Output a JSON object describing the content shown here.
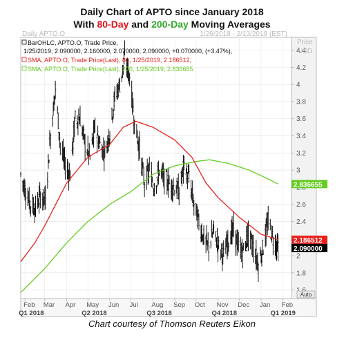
{
  "title": {
    "line1": "Daily Chart of APTO since January 2018",
    "line2_pre": "With ",
    "line2_red": "80-Day",
    "line2_mid": " and ",
    "line2_green": "200-Day",
    "line2_post": " Moving Averages"
  },
  "header": {
    "left": "Daily APTO.O",
    "range": "1/26/2018 - 2/13/2019 (EST)",
    "unit": "Price",
    "unit2": "USD"
  },
  "legend": {
    "bar_line1": "BarOHLC, APTO.O, Trade Price,",
    "bar_line2": "1/25/2019, 2.090000, 2.160000, 2.070000, 2.090000, +0.070000, (+3.47%),",
    "sma80": "SMA, APTO.O, Trade Price(Last),  80, 1/25/2019, 2.186512,",
    "sma200": "SMA, APTO.O, Trade Price(Last),  200, 1/25/2019, 2.836655"
  },
  "caption": "Chart courtesy of Thomson Reuters Eikon",
  "auto_label": "Auto",
  "colors": {
    "bars": "#111111",
    "sma80": "#e8211c",
    "sma200": "#66cc22",
    "axis_bg": "#f2f2f2",
    "grid": "#e3e3e3",
    "last_box": "#000000",
    "sma80_box": "#e8211c",
    "sma200_box": "#66cc22"
  },
  "chart_data": {
    "type": "line",
    "ylim": [
      1.5,
      4.55
    ],
    "xlim": [
      "2018-01-26",
      "2019-02-13"
    ],
    "y_ticks": [
      1.6,
      1.8,
      2,
      2.2,
      2.4,
      2.6,
      2.8,
      3,
      3.2,
      3.4,
      3.6,
      3.8,
      4,
      4.2,
      4.4
    ],
    "month_ticks": [
      {
        "label": "Feb",
        "date": "2018-02-01"
      },
      {
        "label": "Mar",
        "date": "2018-03-01"
      },
      {
        "label": "Apr",
        "date": "2018-04-01"
      },
      {
        "label": "May",
        "date": "2018-05-01"
      },
      {
        "label": "Jun",
        "date": "2018-06-01"
      },
      {
        "label": "Jul",
        "date": "2018-07-01"
      },
      {
        "label": "Aug",
        "date": "2018-08-01"
      },
      {
        "label": "Sep",
        "date": "2018-09-01"
      },
      {
        "label": "Oct",
        "date": "2018-10-01"
      },
      {
        "label": "Nov",
        "date": "2018-11-01"
      },
      {
        "label": "Dec",
        "date": "2018-12-01"
      },
      {
        "label": "Jan",
        "date": "2019-01-01"
      },
      {
        "label": "Feb",
        "date": "2019-02-01"
      }
    ],
    "quarter_labels": [
      {
        "label": "Q1 2018",
        "date": "2018-02-10"
      },
      {
        "label": "Q2 2018",
        "date": "2018-05-10"
      },
      {
        "label": "Q3 2018",
        "date": "2018-08-10"
      },
      {
        "label": "Q4 2018",
        "date": "2018-11-10"
      },
      {
        "label": "Q1 2019",
        "date": "2019-02-01"
      }
    ],
    "ohlc_series": {
      "name": "APTO.O",
      "points": [
        {
          "x": "2018-01-26",
          "y": 2.95
        },
        {
          "x": "2018-02-02",
          "y": 2.75
        },
        {
          "x": "2018-02-09",
          "y": 2.6
        },
        {
          "x": "2018-02-16",
          "y": 2.55
        },
        {
          "x": "2018-02-23",
          "y": 2.7
        },
        {
          "x": "2018-03-02",
          "y": 2.65
        },
        {
          "x": "2018-03-09",
          "y": 3.4
        },
        {
          "x": "2018-03-16",
          "y": 3.95
        },
        {
          "x": "2018-03-23",
          "y": 3.3
        },
        {
          "x": "2018-03-30",
          "y": 3.05
        },
        {
          "x": "2018-04-06",
          "y": 2.95
        },
        {
          "x": "2018-04-13",
          "y": 3.6
        },
        {
          "x": "2018-04-20",
          "y": 3.6
        },
        {
          "x": "2018-04-27",
          "y": 3.3
        },
        {
          "x": "2018-05-04",
          "y": 3.15
        },
        {
          "x": "2018-05-11",
          "y": 3.5
        },
        {
          "x": "2018-05-18",
          "y": 3.3
        },
        {
          "x": "2018-05-25",
          "y": 3.2
        },
        {
          "x": "2018-06-01",
          "y": 3.45
        },
        {
          "x": "2018-06-08",
          "y": 3.85
        },
        {
          "x": "2018-06-15",
          "y": 4.0
        },
        {
          "x": "2018-06-22",
          "y": 4.3
        },
        {
          "x": "2018-06-29",
          "y": 4.1
        },
        {
          "x": "2018-07-06",
          "y": 3.55
        },
        {
          "x": "2018-07-13",
          "y": 3.25
        },
        {
          "x": "2018-07-20",
          "y": 2.85
        },
        {
          "x": "2018-07-27",
          "y": 3.0
        },
        {
          "x": "2018-08-03",
          "y": 2.8
        },
        {
          "x": "2018-08-10",
          "y": 3.0
        },
        {
          "x": "2018-08-17",
          "y": 2.9
        },
        {
          "x": "2018-08-24",
          "y": 2.85
        },
        {
          "x": "2018-08-31",
          "y": 2.8
        },
        {
          "x": "2018-09-07",
          "y": 2.75
        },
        {
          "x": "2018-09-14",
          "y": 3.05
        },
        {
          "x": "2018-09-21",
          "y": 2.9
        },
        {
          "x": "2018-09-28",
          "y": 2.6
        },
        {
          "x": "2018-10-05",
          "y": 2.4
        },
        {
          "x": "2018-10-12",
          "y": 2.2
        },
        {
          "x": "2018-10-19",
          "y": 2.1
        },
        {
          "x": "2018-10-26",
          "y": 2.3
        },
        {
          "x": "2018-11-02",
          "y": 2.1
        },
        {
          "x": "2018-11-09",
          "y": 2.0
        },
        {
          "x": "2018-11-16",
          "y": 2.2
        },
        {
          "x": "2018-11-23",
          "y": 2.3
        },
        {
          "x": "2018-11-30",
          "y": 2.1
        },
        {
          "x": "2018-12-07",
          "y": 2.05
        },
        {
          "x": "2018-12-14",
          "y": 2.25
        },
        {
          "x": "2018-12-21",
          "y": 2.1
        },
        {
          "x": "2018-12-28",
          "y": 1.9
        },
        {
          "x": "2019-01-04",
          "y": 2.1
        },
        {
          "x": "2019-01-11",
          "y": 2.4
        },
        {
          "x": "2019-01-18",
          "y": 2.2
        },
        {
          "x": "2019-01-25",
          "y": 2.09
        }
      ]
    },
    "series": [
      {
        "name": "SMA 80",
        "points": [
          {
            "x": "2018-01-26",
            "y": 1.93
          },
          {
            "x": "2018-02-15",
            "y": 2.15
          },
          {
            "x": "2018-03-01",
            "y": 2.35
          },
          {
            "x": "2018-04-01",
            "y": 2.85
          },
          {
            "x": "2018-05-01",
            "y": 3.15
          },
          {
            "x": "2018-06-01",
            "y": 3.3
          },
          {
            "x": "2018-06-20",
            "y": 3.5
          },
          {
            "x": "2018-07-08",
            "y": 3.57
          },
          {
            "x": "2018-08-01",
            "y": 3.5
          },
          {
            "x": "2018-09-01",
            "y": 3.35
          },
          {
            "x": "2018-09-25",
            "y": 3.15
          },
          {
            "x": "2018-10-15",
            "y": 2.85
          },
          {
            "x": "2018-11-01",
            "y": 2.68
          },
          {
            "x": "2018-12-01",
            "y": 2.45
          },
          {
            "x": "2019-01-01",
            "y": 2.25
          },
          {
            "x": "2019-01-25",
            "y": 2.186512
          }
        ]
      },
      {
        "name": "SMA 200",
        "points": [
          {
            "x": "2018-01-26",
            "y": 1.57
          },
          {
            "x": "2018-03-01",
            "y": 1.85
          },
          {
            "x": "2018-04-01",
            "y": 2.15
          },
          {
            "x": "2018-05-01",
            "y": 2.4
          },
          {
            "x": "2018-06-01",
            "y": 2.6
          },
          {
            "x": "2018-07-01",
            "y": 2.75
          },
          {
            "x": "2018-08-01",
            "y": 2.95
          },
          {
            "x": "2018-09-01",
            "y": 3.05
          },
          {
            "x": "2018-10-01",
            "y": 3.1
          },
          {
            "x": "2018-10-20",
            "y": 3.12
          },
          {
            "x": "2018-11-15",
            "y": 3.08
          },
          {
            "x": "2018-12-15",
            "y": 3.0
          },
          {
            "x": "2019-01-10",
            "y": 2.9
          },
          {
            "x": "2019-01-25",
            "y": 2.836655
          }
        ]
      }
    ],
    "last_values": {
      "price": "2.090000",
      "sma80": "2.186512",
      "sma200": "2.836655"
    }
  }
}
